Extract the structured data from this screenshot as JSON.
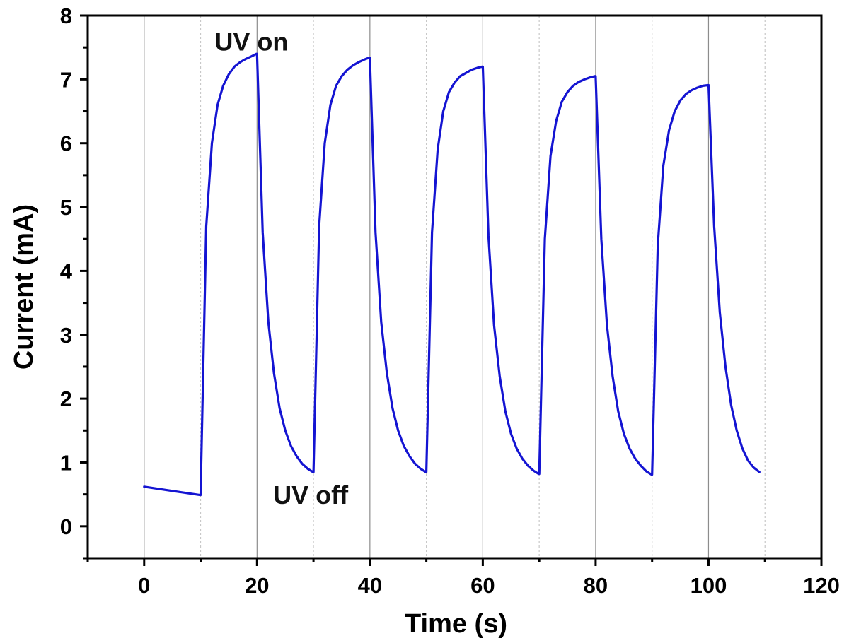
{
  "chart_data": {
    "type": "line",
    "xlabel": "Time (s)",
    "ylabel": "Current (mA)",
    "xlim": [
      -10,
      120
    ],
    "ylim": [
      -0.5,
      8
    ],
    "x_ticks": [
      0,
      20,
      40,
      60,
      80,
      100,
      120
    ],
    "y_ticks": [
      0,
      1,
      2,
      3,
      4,
      5,
      6,
      7,
      8
    ],
    "x_minor_ticks": [
      -10,
      10,
      30,
      50,
      70,
      90,
      110
    ],
    "y_minor_ticks": [
      -0.5,
      0.5,
      1.5,
      2.5,
      3.5,
      4.5,
      5.5,
      6.5,
      7.5
    ],
    "grid": {
      "major_x": [
        0,
        20,
        40,
        60,
        80,
        100
      ],
      "minor_x": [
        10,
        30,
        50,
        70,
        90,
        110
      ],
      "major_color": "#8c8c8c",
      "minor_color": "#c8c8c8"
    },
    "series": [
      {
        "color": "#1414d2",
        "x": [
          0,
          9.9,
          10,
          11,
          12,
          13,
          14,
          15,
          16,
          17,
          18,
          19,
          19.9,
          20,
          21,
          22,
          23,
          24,
          25,
          26,
          27,
          28,
          29,
          29.9,
          30,
          31,
          32,
          33,
          34,
          35,
          36,
          37,
          38,
          39,
          39.9,
          40,
          41,
          42,
          43,
          44,
          45,
          46,
          47,
          48,
          49,
          49.9,
          50,
          51,
          52,
          53,
          54,
          55,
          56,
          57,
          58,
          59,
          59.9,
          60,
          61,
          62,
          63,
          64,
          65,
          66,
          67,
          68,
          69,
          69.9,
          70,
          71,
          72,
          73,
          74,
          75,
          76,
          77,
          78,
          79,
          79.9,
          80,
          81,
          82,
          83,
          84,
          85,
          86,
          87,
          88,
          89,
          89.9,
          90,
          91,
          92,
          93,
          94,
          95,
          96,
          97,
          98,
          99,
          99.9,
          100,
          101,
          102,
          103,
          104,
          105,
          106,
          107,
          108,
          109
        ],
        "y": [
          0.62,
          0.49,
          0.49,
          4.7,
          6.0,
          6.6,
          6.9,
          7.08,
          7.2,
          7.27,
          7.32,
          7.36,
          7.4,
          7.4,
          4.6,
          3.2,
          2.4,
          1.85,
          1.5,
          1.26,
          1.1,
          0.98,
          0.9,
          0.85,
          0.85,
          4.7,
          6.0,
          6.6,
          6.9,
          7.05,
          7.15,
          7.22,
          7.27,
          7.31,
          7.34,
          7.34,
          4.6,
          3.2,
          2.4,
          1.85,
          1.5,
          1.26,
          1.1,
          0.98,
          0.9,
          0.85,
          0.85,
          4.6,
          5.9,
          6.5,
          6.8,
          6.95,
          7.05,
          7.1,
          7.15,
          7.18,
          7.2,
          7.2,
          4.55,
          3.15,
          2.35,
          1.8,
          1.45,
          1.22,
          1.06,
          0.95,
          0.87,
          0.82,
          0.82,
          4.5,
          5.8,
          6.35,
          6.65,
          6.8,
          6.9,
          6.96,
          7.0,
          7.03,
          7.05,
          7.05,
          4.5,
          3.15,
          2.35,
          1.8,
          1.45,
          1.22,
          1.06,
          0.95,
          0.86,
          0.81,
          0.81,
          4.4,
          5.65,
          6.2,
          6.5,
          6.67,
          6.77,
          6.83,
          6.87,
          6.9,
          6.91,
          6.91,
          4.7,
          3.35,
          2.5,
          1.9,
          1.5,
          1.22,
          1.03,
          0.92,
          0.85
        ]
      }
    ],
    "annotations": [
      {
        "text": "UV on",
        "x": 19,
        "y": 7.45
      },
      {
        "text": "UV off",
        "x": 29.5,
        "y": 0.35
      }
    ]
  }
}
